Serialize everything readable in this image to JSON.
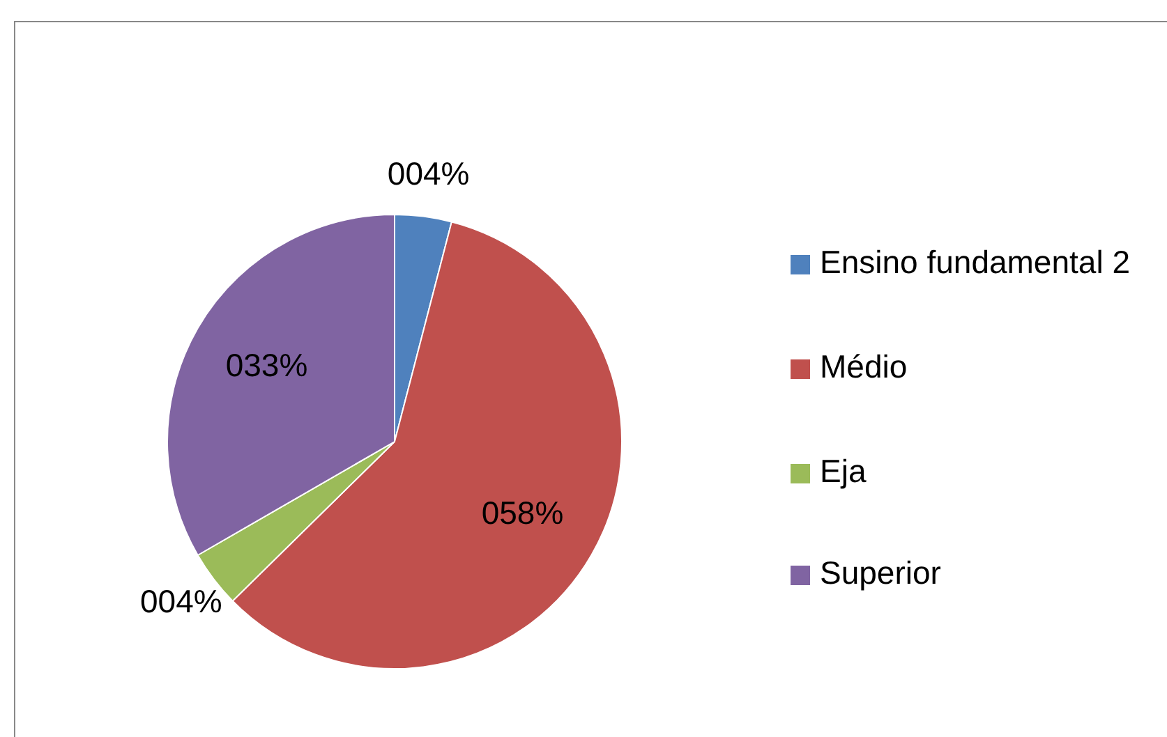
{
  "chart_data": {
    "type": "pie",
    "categories": [
      "Ensino fundamental 2",
      "Médio",
      "Eja",
      "Superior"
    ],
    "values": [
      4,
      58,
      4,
      33
    ],
    "colors": [
      "#4f81bd",
      "#c0504d",
      "#9bbb59",
      "#8064a2"
    ],
    "value_labels": [
      "004%",
      "058%",
      "004%",
      "033%"
    ],
    "legend": "right"
  }
}
